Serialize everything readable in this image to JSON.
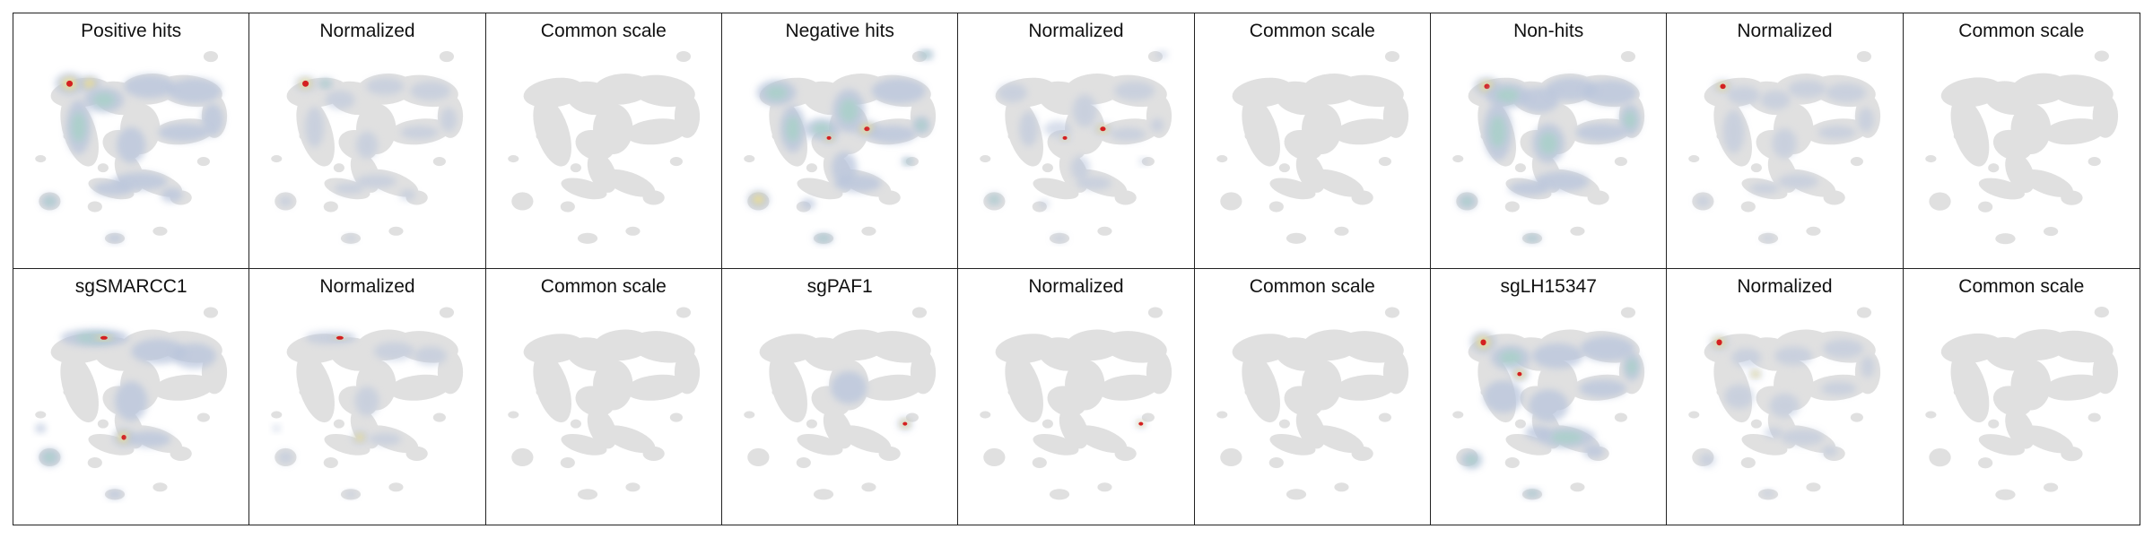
{
  "figure": {
    "colors": {
      "umap_background": "#e0e0e0",
      "density_low": "#b8c4dc",
      "density_mid": "#a8d0c8",
      "density_high": "#f2e08a",
      "density_peak": "#d42020",
      "frame": "#222222"
    },
    "rows": [
      {
        "panels": [
          {
            "title": "Positive hits",
            "mode": "density",
            "colormap": "blue-cyan-yellow-red"
          },
          {
            "title": "Normalized",
            "mode": "normalized",
            "colormap": "blue-cyan-yellow-red"
          },
          {
            "title": "Common scale",
            "mode": "common",
            "colormap": "blue-cyan-yellow-red"
          },
          {
            "title": "Negative hits",
            "mode": "density",
            "colormap": "blue-cyan-yellow-red"
          },
          {
            "title": "Normalized",
            "mode": "normalized",
            "colormap": "blue-cyan-yellow-red"
          },
          {
            "title": "Common scale",
            "mode": "common",
            "colormap": "blue-cyan-yellow-red"
          },
          {
            "title": "Non-hits",
            "mode": "density",
            "colormap": "blue-cyan-yellow-red"
          },
          {
            "title": "Normalized",
            "mode": "normalized",
            "colormap": "blue-cyan-yellow-red"
          },
          {
            "title": "Common scale",
            "mode": "common",
            "colormap": "blue-cyan-yellow-red"
          }
        ]
      },
      {
        "panels": [
          {
            "title": "sgSMARCC1",
            "mode": "density",
            "colormap": "blue-cyan-yellow-red"
          },
          {
            "title": "Normalized",
            "mode": "normalized",
            "colormap": "blue-cyan-yellow-red"
          },
          {
            "title": "Common scale",
            "mode": "common",
            "colormap": "blue-cyan-yellow-red"
          },
          {
            "title": "sgPAF1",
            "mode": "density",
            "colormap": "blue-cyan-yellow-red"
          },
          {
            "title": "Normalized",
            "mode": "normalized",
            "colormap": "blue-cyan-yellow-red"
          },
          {
            "title": "Common scale",
            "mode": "common",
            "colormap": "blue-cyan-yellow-red"
          },
          {
            "title": "sgLH15347",
            "mode": "density",
            "colormap": "blue-cyan-yellow-red"
          },
          {
            "title": "Normalized",
            "mode": "normalized",
            "colormap": "blue-cyan-yellow-red"
          },
          {
            "title": "Common scale",
            "mode": "common",
            "colormap": "blue-cyan-yellow-red"
          }
        ]
      }
    ]
  }
}
